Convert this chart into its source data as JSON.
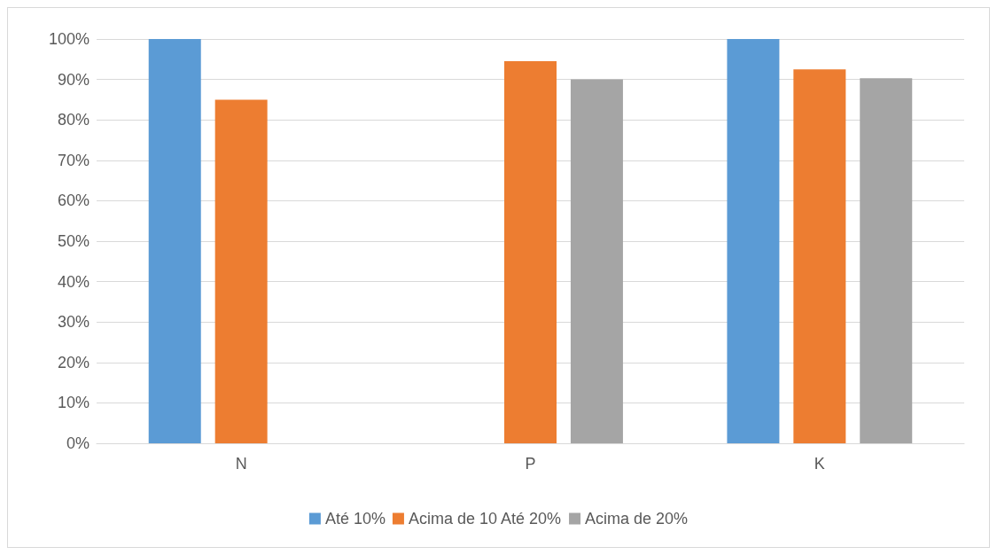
{
  "chart_data": {
    "type": "bar",
    "categories": [
      "N",
      "P",
      "K"
    ],
    "series": [
      {
        "name": "Até 10%",
        "color": "#5b9bd5",
        "values": [
          100,
          null,
          100
        ]
      },
      {
        "name": "Acima de 10 Até 20%",
        "color": "#ed7d31",
        "values": [
          85,
          94.5,
          92.5
        ]
      },
      {
        "name": "Acima de 20%",
        "color": "#a5a5a5",
        "values": [
          null,
          90,
          90.3
        ]
      }
    ],
    "ylim": [
      0,
      100
    ],
    "yticks": [
      {
        "value": 0,
        "label": "0%"
      },
      {
        "value": 10,
        "label": "10%"
      },
      {
        "value": 20,
        "label": "20%"
      },
      {
        "value": 30,
        "label": "30%"
      },
      {
        "value": 40,
        "label": "40%"
      },
      {
        "value": 50,
        "label": "50%"
      },
      {
        "value": 60,
        "label": "60%"
      },
      {
        "value": 70,
        "label": "70%"
      },
      {
        "value": 80,
        "label": "80%"
      },
      {
        "value": 90,
        "label": "90%"
      },
      {
        "value": 100,
        "label": "100%"
      }
    ],
    "grid": "y",
    "legend": "bottom"
  }
}
